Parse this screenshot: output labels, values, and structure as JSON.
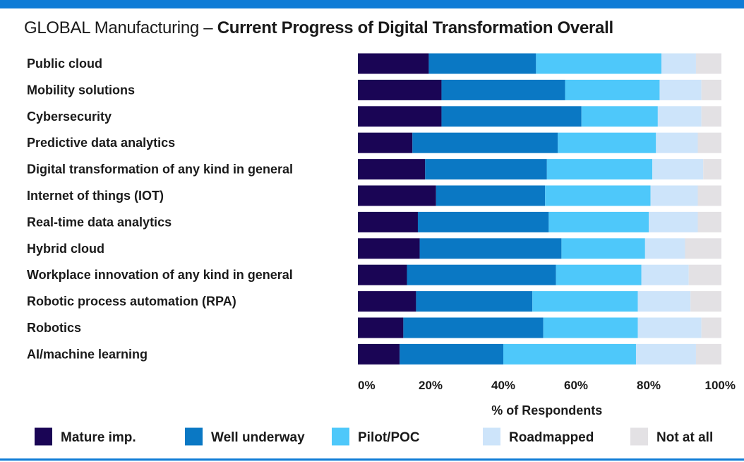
{
  "title_prefix": "GLOBAL Manufacturing – ",
  "title_bold": "Current Progress of Digital Transformation Overall",
  "chart_data": {
    "type": "bar",
    "orientation": "horizontal",
    "stacked": true,
    "categories": [
      "Public cloud",
      "Mobility solutions",
      "Cybersecurity",
      "Predictive data analytics",
      "Digital transformation of any kind in general",
      "Internet of things (IOT)",
      "Real-time data analytics",
      "Hybrid cloud",
      "Workplace innovation of any kind in general",
      "Robotic process automation (RPA)",
      "Robotics",
      "AI/machine learning"
    ],
    "series": [
      {
        "name": "Mature imp.",
        "color": "#1a0555",
        "values": [
          19.5,
          23,
          23,
          15,
          18.5,
          21.5,
          16.5,
          17,
          13.5,
          16,
          12.5,
          11.5
        ]
      },
      {
        "name": "Well underway",
        "color": "#0a78c4",
        "values": [
          29.5,
          34,
          38.5,
          40,
          33.5,
          30,
          36,
          39,
          41,
          32,
          38.5,
          28.5
        ]
      },
      {
        "name": "Pilot/POC",
        "color": "#4ec8fa",
        "values": [
          34.5,
          26,
          21,
          27,
          29,
          29,
          27.5,
          23,
          23.5,
          29,
          26,
          36.5
        ]
      },
      {
        "name": "Roadmapped",
        "color": "#cde4fa",
        "values": [
          9.5,
          11.5,
          12,
          11.5,
          14,
          13,
          13.5,
          11,
          13,
          14.5,
          17.5,
          16.5
        ]
      },
      {
        "name": "Not at all",
        "color": "#e3e1e4",
        "values": [
          7,
          5.5,
          5.5,
          6.5,
          5,
          6.5,
          6.5,
          10,
          9,
          8.5,
          5.5,
          7
        ]
      }
    ],
    "x_ticks": [
      "0%",
      "20%",
      "40%",
      "60%",
      "80%",
      "100%"
    ],
    "xlim": [
      0,
      100
    ],
    "xlabel": "% of Respondents",
    "legend_position": "bottom"
  }
}
